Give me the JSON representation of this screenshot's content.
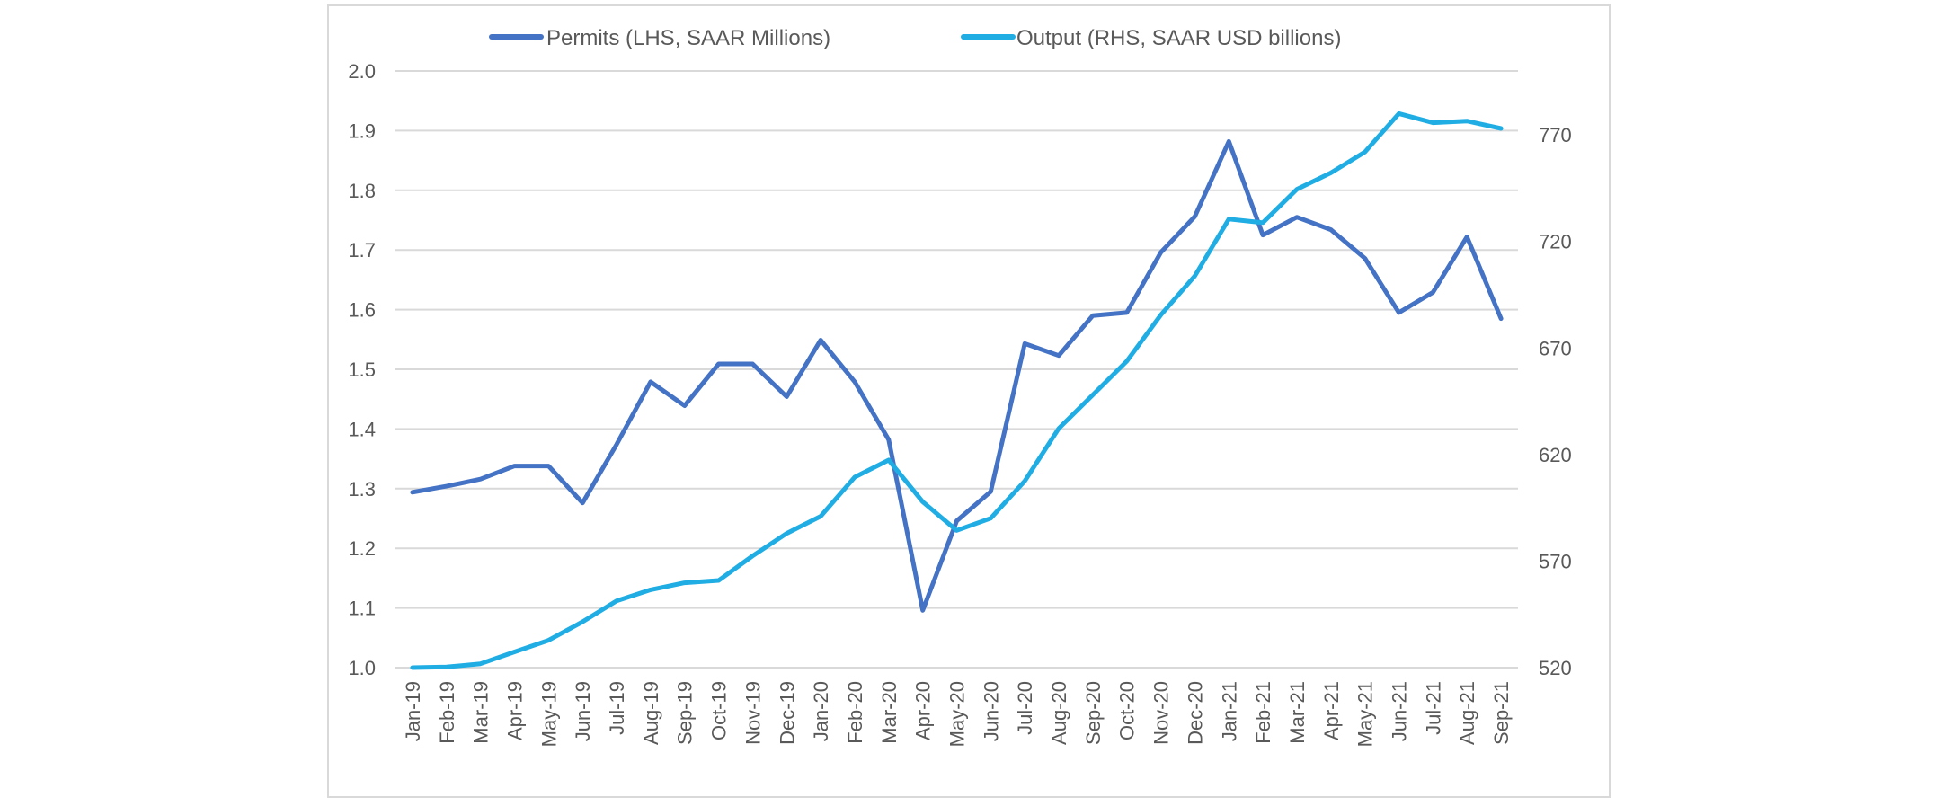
{
  "chart_data": {
    "type": "line",
    "title": "",
    "xlabel": "",
    "ylabel": "",
    "y2label": "",
    "grid": true,
    "legend_position": "top-center",
    "categories": [
      "Jan-19",
      "Feb-19",
      "Mar-19",
      "Apr-19",
      "May-19",
      "Jun-19",
      "Jul-19",
      "Aug-19",
      "Sep-19",
      "Oct-19",
      "Nov-19",
      "Dec-19",
      "Jan-20",
      "Feb-20",
      "Mar-20",
      "Apr-20",
      "May-20",
      "Jun-20",
      "Jul-20",
      "Aug-20",
      "Sep-20",
      "Oct-20",
      "Nov-20",
      "Dec-20",
      "Jan-21",
      "Feb-21",
      "Mar-21",
      "Apr-21",
      "May-21",
      "Jun-21",
      "Jul-21",
      "Aug-21",
      "Sep-21"
    ],
    "ylim": [
      1.0,
      2.0
    ],
    "y_ticks": [
      "1.0",
      "1.1",
      "1.2",
      "1.3",
      "1.4",
      "1.5",
      "1.6",
      "1.7",
      "1.8",
      "1.9",
      "2.0"
    ],
    "y2lim": [
      520,
      800
    ],
    "y2_ticks": [
      "520",
      "570",
      "620",
      "670",
      "720",
      "770"
    ],
    "series": [
      {
        "name": "Permits (LHS, SAAR Millions)",
        "axis": "left",
        "color": "#4472C4",
        "values": [
          1.294,
          1.304,
          1.316,
          1.338,
          1.338,
          1.276,
          1.374,
          1.479,
          1.439,
          1.509,
          1.509,
          1.454,
          1.549,
          1.479,
          1.382,
          1.096,
          1.246,
          1.295,
          1.543,
          1.523,
          1.59,
          1.595,
          1.696,
          1.756,
          1.882,
          1.725,
          1.755,
          1.734,
          1.686,
          1.595,
          1.629,
          1.722,
          1.585
        ]
      },
      {
        "name": "Output (RHS, SAAR USD billions)",
        "axis": "right",
        "color": "#1FADE4",
        "values": [
          520.0,
          520.3,
          521.8,
          527.4,
          532.8,
          541.5,
          551.3,
          556.5,
          559.8,
          560.9,
          572.4,
          583.0,
          591.0,
          609.4,
          617.4,
          597.8,
          584.4,
          590.1,
          607.6,
          632.2,
          648.0,
          663.8,
          685.5,
          703.8,
          730.5,
          728.8,
          744.5,
          752.2,
          762.0,
          780.0,
          775.7,
          776.5,
          773.0
        ]
      }
    ]
  }
}
